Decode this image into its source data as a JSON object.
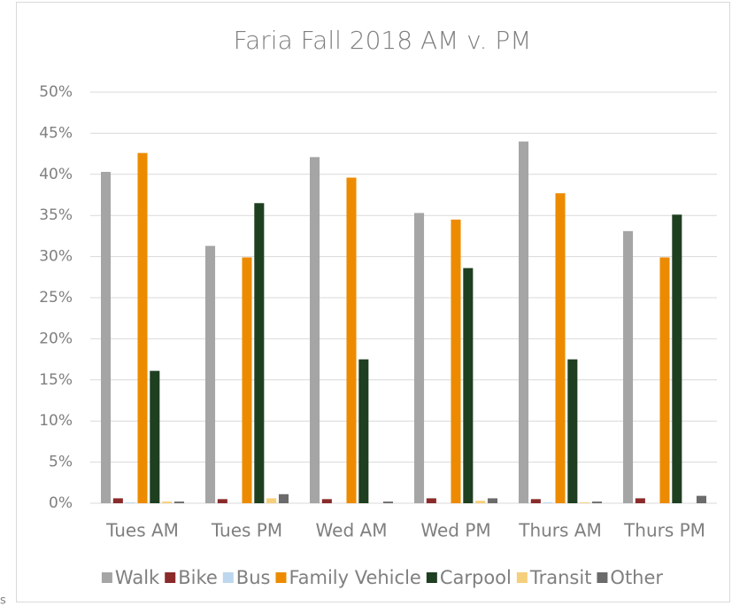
{
  "chart_data": {
    "type": "bar",
    "title": "Faria Fall 2018 AM v. PM",
    "categories": [
      "Tues AM",
      "Tues PM",
      "Wed AM",
      "Wed PM",
      "Thurs AM",
      "Thurs PM"
    ],
    "series": [
      {
        "name": "Walk",
        "color": "#a5a5a5",
        "values": [
          40.3,
          31.3,
          42.1,
          35.3,
          44.0,
          33.1
        ]
      },
      {
        "name": "Bike",
        "color": "#8b2a2a",
        "values": [
          0.6,
          0.5,
          0.5,
          0.6,
          0.5,
          0.6
        ]
      },
      {
        "name": "Bus",
        "color": "#bdd7ee",
        "values": [
          0.1,
          0,
          0,
          0,
          0.1,
          0
        ]
      },
      {
        "name": "Family Vehicle",
        "color": "#ed8b00",
        "values": [
          42.6,
          29.9,
          39.6,
          34.5,
          37.7,
          29.9
        ]
      },
      {
        "name": "Carpool",
        "color": "#1e3f20",
        "values": [
          16.1,
          36.5,
          17.5,
          28.6,
          17.5,
          35.1
        ]
      },
      {
        "name": "Transit",
        "color": "#f5cf7a",
        "values": [
          0.2,
          0.6,
          0,
          0.3,
          0.1,
          0
        ]
      },
      {
        "name": "Other",
        "color": "#6b6b6b",
        "values": [
          0.2,
          1.1,
          0.2,
          0.6,
          0.2,
          0.9
        ]
      }
    ],
    "ylim": [
      0,
      50
    ],
    "yticks": [
      {
        "value": 0,
        "label": "0%"
      },
      {
        "value": 5,
        "label": "5%"
      },
      {
        "value": 10,
        "label": "10%"
      },
      {
        "value": 15,
        "label": "15%"
      },
      {
        "value": 20,
        "label": "20%"
      },
      {
        "value": 25,
        "label": "25%"
      },
      {
        "value": 30,
        "label": "30%"
      },
      {
        "value": 35,
        "label": "35%"
      },
      {
        "value": 40,
        "label": "40%"
      },
      {
        "value": 45,
        "label": "45%"
      },
      {
        "value": 50,
        "label": "50%"
      }
    ],
    "grid": true,
    "legend": "bottom"
  },
  "fragment": "s"
}
